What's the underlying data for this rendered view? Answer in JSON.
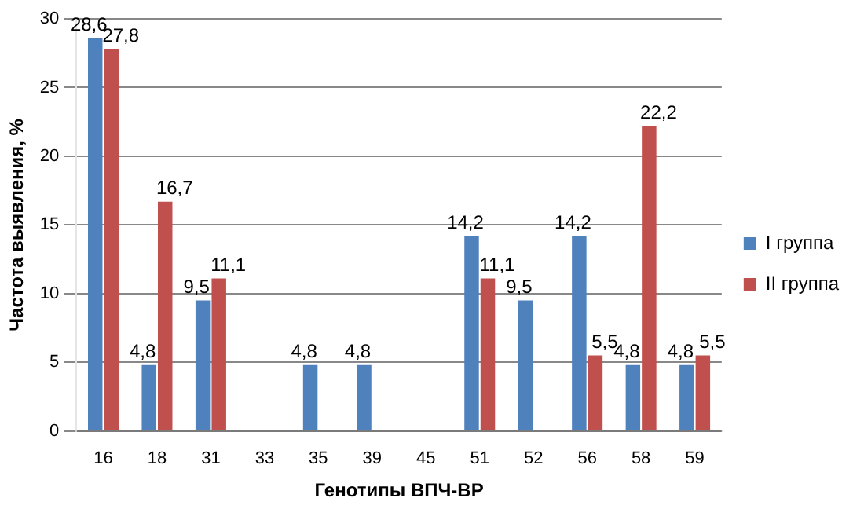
{
  "chart_data": {
    "type": "bar",
    "xlabel": "Генотипы ВПЧ-ВР",
    "ylabel": "Частота выявления, %",
    "categories": [
      "16",
      "18",
      "31",
      "33",
      "35",
      "39",
      "45",
      "51",
      "52",
      "56",
      "58",
      "59"
    ],
    "series": [
      {
        "name": "I группа",
        "color": "#4f81bd",
        "values": [
          28.6,
          4.8,
          9.5,
          0,
          4.8,
          4.8,
          0,
          14.2,
          9.5,
          14.2,
          4.8,
          4.8
        ],
        "value_labels": [
          "28,6",
          "4,8",
          "9,5",
          null,
          "4,8",
          "4,8",
          null,
          "14,2",
          "9,5",
          "14,2",
          "4,8",
          "4,8"
        ]
      },
      {
        "name": "II группа",
        "color": "#c0504d",
        "values": [
          27.8,
          16.7,
          11.1,
          0,
          0,
          0,
          0,
          11.1,
          0,
          5.5,
          22.2,
          5.5
        ],
        "value_labels": [
          "27,8",
          "16,7",
          "11,1",
          null,
          null,
          null,
          null,
          "11,1",
          null,
          "5,5",
          "22,2",
          "5,5"
        ]
      }
    ],
    "ylim": [
      0,
      30
    ],
    "yticks": [
      0,
      5,
      10,
      15,
      20,
      25,
      30
    ],
    "grid": "y",
    "legend": "right"
  }
}
